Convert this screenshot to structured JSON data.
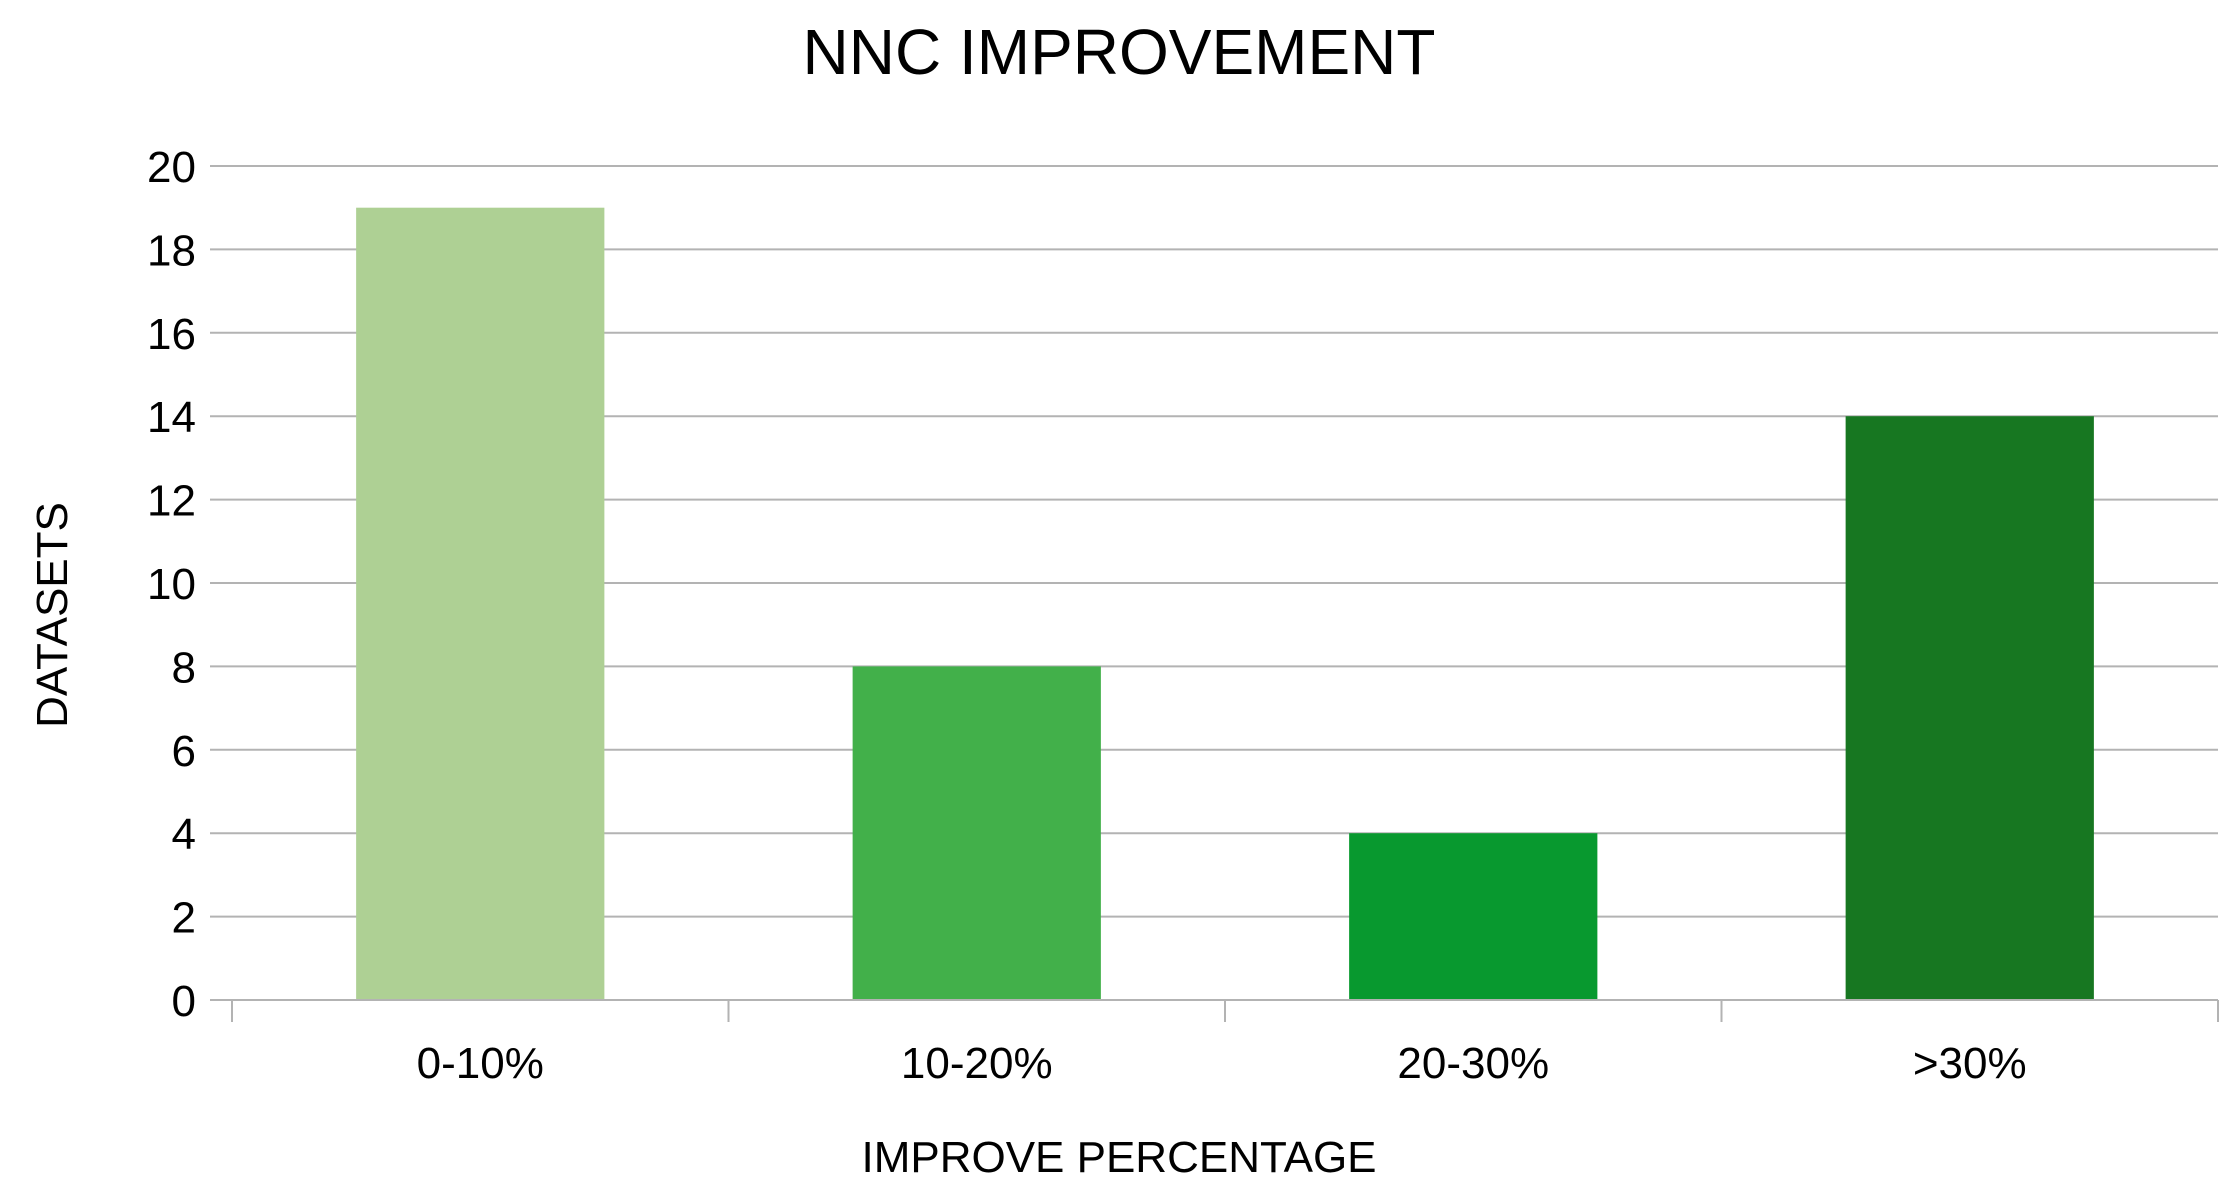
{
  "chart_data": {
    "type": "bar",
    "title": "NNC IMPROVEMENT",
    "xlabel": "IMPROVE PERCENTAGE",
    "ylabel": "DATASETS",
    "categories": [
      "0-10%",
      "10-20%",
      "20-30%",
      ">30%"
    ],
    "values": [
      19,
      8,
      4,
      14
    ],
    "ylim": [
      0,
      20
    ],
    "yticks": [
      0,
      2,
      4,
      6,
      8,
      10,
      12,
      14,
      16,
      18,
      20
    ],
    "grid": true,
    "legend": "none",
    "colors": [
      "#aed094",
      "#42b04a",
      "#08992f",
      "#177721"
    ]
  }
}
